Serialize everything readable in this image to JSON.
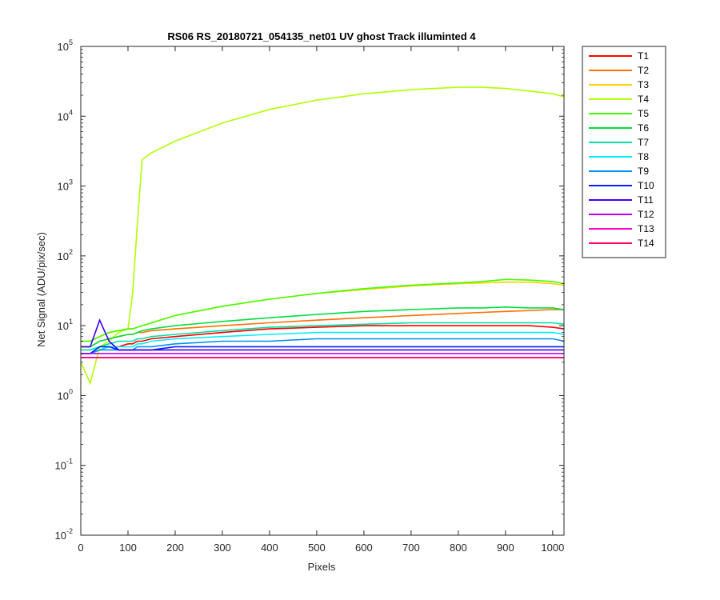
{
  "chart_data": {
    "type": "line",
    "title": "RS06 RS_20180721_054135_net01   UV ghost        Track illuminted 4",
    "xlabel": "Pixels",
    "ylabel": "Net Signal (ADU/pix/sec)",
    "xlim": [
      0,
      1024
    ],
    "ylim": [
      0.01,
      100000
    ],
    "yscale": "log",
    "x_ticks": [
      "0",
      "100",
      "200",
      "300",
      "400",
      "500",
      "600",
      "700",
      "800",
      "900",
      "1000"
    ],
    "y_ticks": [
      {
        "base": "10",
        "exp": "-2"
      },
      {
        "base": "10",
        "exp": "-1"
      },
      {
        "base": "10",
        "exp": "0"
      },
      {
        "base": "10",
        "exp": "1"
      },
      {
        "base": "10",
        "exp": "2"
      },
      {
        "base": "10",
        "exp": "3"
      },
      {
        "base": "10",
        "exp": "4"
      },
      {
        "base": "10",
        "exp": "5"
      }
    ],
    "grid": false,
    "legend_position": "outside-right",
    "x": [
      0,
      20,
      40,
      60,
      80,
      100,
      110,
      120,
      130,
      150,
      200,
      300,
      400,
      500,
      600,
      700,
      800,
      850,
      900,
      950,
      1000,
      1024
    ],
    "series": [
      {
        "name": "T1",
        "color": "#ff0000",
        "values": [
          4,
          4,
          4.5,
          5,
          5,
          5.5,
          5.5,
          6,
          6,
          6.5,
          7,
          8,
          9,
          9.5,
          10,
          10,
          10,
          10,
          10,
          10,
          9.5,
          9
        ]
      },
      {
        "name": "T2",
        "color": "#ff7000",
        "values": [
          5,
          5,
          6,
          6.5,
          7,
          7.5,
          7.5,
          8,
          8,
          8.5,
          9,
          10,
          11,
          12,
          13,
          14,
          15,
          15.5,
          16,
          16.5,
          17,
          17
        ]
      },
      {
        "name": "T3",
        "color": "#ffd000",
        "values": [
          6,
          6,
          7,
          8,
          8.5,
          9,
          9,
          9.5,
          10,
          11,
          14,
          19,
          24,
          29,
          33,
          37,
          40,
          41,
          42,
          42,
          40,
          38
        ]
      },
      {
        "name": "T4",
        "color": "#b0ff00",
        "values": [
          3,
          1.5,
          5,
          6,
          8,
          9,
          30,
          300,
          2400,
          3000,
          4400,
          8000,
          12500,
          17000,
          21000,
          24000,
          26000,
          26000,
          25000,
          23000,
          21000,
          19000
        ]
      },
      {
        "name": "T5",
        "color": "#40ff00",
        "values": [
          6,
          6,
          7,
          8,
          8.5,
          9,
          9,
          9.5,
          10,
          11,
          14,
          19,
          24,
          29,
          34,
          38,
          41,
          43,
          46,
          45,
          43,
          40
        ]
      },
      {
        "name": "T6",
        "color": "#00e040",
        "values": [
          5,
          5,
          6,
          6.5,
          7,
          7.5,
          7.5,
          8,
          8.5,
          9,
          10,
          11.5,
          13,
          14.5,
          16,
          17,
          18,
          18,
          18.5,
          18,
          18,
          17
        ]
      },
      {
        "name": "T7",
        "color": "#00e0a0",
        "values": [
          4.5,
          4.5,
          5,
          5.5,
          6,
          6,
          6,
          6.5,
          6.5,
          7,
          7.5,
          8.5,
          9.5,
          10,
          10.5,
          11,
          11,
          11,
          11,
          11,
          11,
          10.5
        ]
      },
      {
        "name": "T8",
        "color": "#00f0ff",
        "values": [
          4,
          4,
          4.5,
          5,
          5,
          5,
          5,
          5.5,
          5.5,
          6,
          6.5,
          7,
          7.5,
          8,
          8,
          8,
          8,
          8,
          8,
          8,
          8,
          7.5
        ]
      },
      {
        "name": "T9",
        "color": "#0090ff",
        "values": [
          4,
          4,
          4.5,
          4.5,
          4.5,
          4.5,
          4.5,
          5,
          5,
          5,
          5.5,
          6,
          6,
          6.5,
          6.5,
          6.5,
          6.5,
          6.5,
          6.5,
          6.5,
          6.5,
          6
        ]
      },
      {
        "name": "T10",
        "color": "#0020ff",
        "values": [
          4,
          4,
          5,
          5,
          4.5,
          4.5,
          4.5,
          4.5,
          4.5,
          4.5,
          5,
          5,
          5,
          5,
          5,
          5,
          5,
          5,
          5,
          5,
          5,
          5
        ]
      },
      {
        "name": "T11",
        "color": "#4000ff",
        "values": [
          5,
          5,
          12,
          6,
          4.5,
          4.5,
          4.5,
          4.5,
          4.5,
          4.5,
          4.5,
          4.5,
          4.5,
          4.5,
          4.5,
          4.5,
          4.5,
          4.5,
          4.5,
          4.5,
          4.5,
          4.5
        ]
      },
      {
        "name": "T12",
        "color": "#c000ff",
        "values": [
          4,
          4,
          4,
          4,
          4,
          4,
          4,
          4,
          4,
          4,
          4,
          4,
          4,
          4,
          4,
          4,
          4,
          4,
          4,
          4,
          4,
          4
        ]
      },
      {
        "name": "T13",
        "color": "#ff00d0",
        "values": [
          3.5,
          3.5,
          3.5,
          3.5,
          3.5,
          3.5,
          3.5,
          3.5,
          3.5,
          3.5,
          3.5,
          3.5,
          3.5,
          3.5,
          3.5,
          3.5,
          3.5,
          3.5,
          3.5,
          3.5,
          3.5,
          3.5
        ]
      },
      {
        "name": "T14",
        "color": "#ff0070",
        "values": [
          3.5,
          3.5,
          3.5,
          3.5,
          3.5,
          3.5,
          3.5,
          3.5,
          3.5,
          3.5,
          3.5,
          3.5,
          3.5,
          3.5,
          3.5,
          3.5,
          3.5,
          3.5,
          3.5,
          3.5,
          3.5,
          3.5
        ]
      }
    ]
  }
}
